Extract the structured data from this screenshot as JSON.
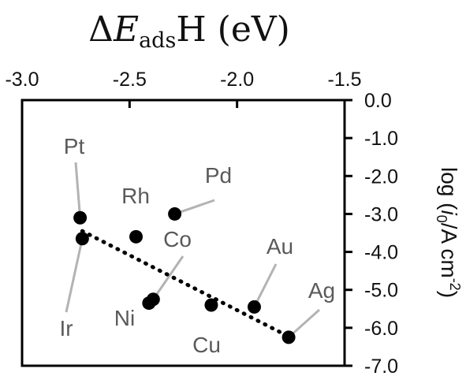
{
  "chart_data": {
    "type": "scatter",
    "title": "",
    "xlabel": "ΔĒadsH (eV)",
    "xlabel_parts": {
      "delta": "Δ",
      "symbol": "E",
      "subscript": "ads",
      "rest": "H (eV)"
    },
    "ylabel": "log (i0/A cm-2)",
    "ylabel_parts": {
      "prefix": "log (",
      "italic": "i",
      "sub": "0",
      "mid": "/A cm",
      "sup": "-2",
      "suffix": ")"
    },
    "xlim": [
      -3.0,
      -1.5
    ],
    "ylim": [
      -7.0,
      0.0
    ],
    "x_ticks": [
      -3.0,
      -2.5,
      -2.0,
      -1.5
    ],
    "x_tick_labels": [
      "-3.0",
      "-2.5",
      "-2.0",
      "-1.5"
    ],
    "x_axis_position": "top",
    "y_ticks": [
      0.0,
      -1.0,
      -2.0,
      -3.0,
      -4.0,
      -5.0,
      -6.0,
      -7.0
    ],
    "y_tick_labels": [
      "0.0",
      "-1.0",
      "-2.0",
      "-3.0",
      "-4.0",
      "-5.0",
      "-6.0",
      "-7.0"
    ],
    "y_axis_position": "right",
    "grid": false,
    "points": [
      {
        "label": "Pt",
        "x": -2.73,
        "y": -3.1
      },
      {
        "label": "Ir",
        "x": -2.72,
        "y": -3.65
      },
      {
        "label": "Rh",
        "x": -2.47,
        "y": -3.6
      },
      {
        "label": "Pd",
        "x": -2.29,
        "y": -3.0
      },
      {
        "label": "Co",
        "x": -2.39,
        "y": -5.25
      },
      {
        "label": "Ni",
        "x": -2.41,
        "y": -5.35
      },
      {
        "label": "Cu",
        "x": -2.12,
        "y": -5.4
      },
      {
        "label": "Au",
        "x": -1.92,
        "y": -5.45
      },
      {
        "label": "Ag",
        "x": -1.76,
        "y": -6.25
      }
    ],
    "trend_line": {
      "style": "dotted",
      "from": {
        "x": -2.72,
        "y": -3.45
      },
      "to": {
        "x": -1.77,
        "y": -6.2
      }
    },
    "colors": {
      "marker": "#000000",
      "label_text": "#5a5a5a",
      "leader_line": "#b3b3b3",
      "axis": "#000000"
    }
  }
}
